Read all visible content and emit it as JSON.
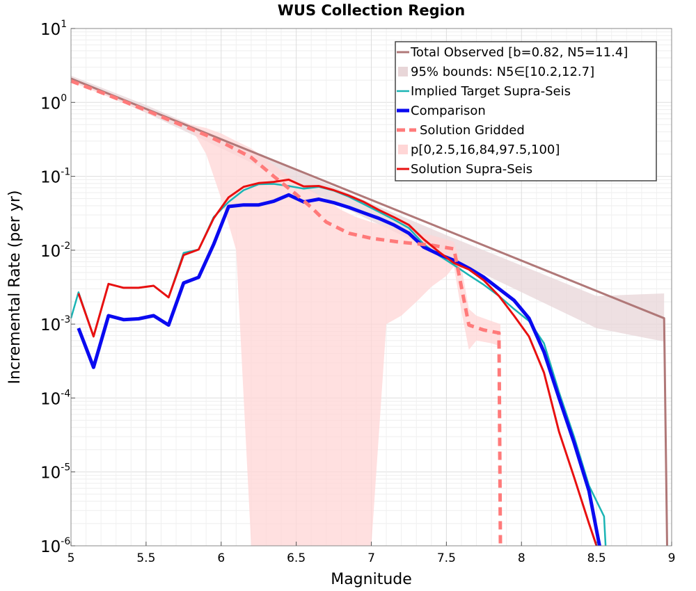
{
  "chart_data": {
    "type": "line",
    "title": "WUS Collection Region",
    "xlabel": "Magnitude",
    "ylabel": "Incremental Rate (per yr)",
    "xlim": [
      5,
      9
    ],
    "ylim": [
      1e-06,
      10
    ],
    "y_scale": "log",
    "grid": true,
    "legend_position": "top-right",
    "x_ticks": [
      "5",
      "5.5",
      "6",
      "6.5",
      "7",
      "7.5",
      "8",
      "8.5",
      "9"
    ],
    "y_ticks": [
      {
        "base": "10",
        "exp": "-6",
        "value": 1e-06
      },
      {
        "base": "10",
        "exp": "-5",
        "value": 1e-05
      },
      {
        "base": "10",
        "exp": "-4",
        "value": 0.0001
      },
      {
        "base": "10",
        "exp": "-3",
        "value": 0.001
      },
      {
        "base": "10",
        "exp": "-2",
        "value": 0.01
      },
      {
        "base": "10",
        "exp": "-1",
        "value": 0.1
      },
      {
        "base": "10",
        "exp": "0",
        "value": 1
      },
      {
        "base": "10",
        "exp": "1",
        "value": 10
      }
    ],
    "series": [
      {
        "name": "Total Observed [b=0.82, N5=11.4]",
        "color": "#b07878",
        "style": "solid",
        "kind": "line",
        "x": [
          5.0,
          8.95,
          8.97
        ],
        "y": [
          2.1,
          0.0012,
          1e-06
        ]
      },
      {
        "name": "95% bounds: N5∈[10.2,12.7]",
        "color": "#e8d6d8",
        "kind": "band",
        "x": [
          5.0,
          5.5,
          6.0,
          6.5,
          7.0,
          7.5,
          8.0,
          8.5,
          8.95
        ],
        "lower": [
          2.0,
          0.72,
          0.24,
          0.078,
          0.025,
          0.0083,
          0.0027,
          0.00088,
          0.00058
        ],
        "upper": [
          2.3,
          0.92,
          0.33,
          0.12,
          0.043,
          0.016,
          0.0062,
          0.0024,
          0.0026
        ]
      },
      {
        "name": "Implied Target Supra-Seis",
        "color": "#1ab4b4",
        "style": "solid",
        "kind": "line",
        "x": [
          5.0,
          5.05,
          5.15,
          5.25,
          5.35,
          5.45,
          5.55,
          5.65,
          5.75,
          5.85,
          5.95,
          6.05,
          6.15,
          6.25,
          6.35,
          6.45,
          6.55,
          6.65,
          6.75,
          6.85,
          6.95,
          7.05,
          7.15,
          7.25,
          7.35,
          7.45,
          7.55,
          7.65,
          7.75,
          7.85,
          7.95,
          8.05,
          8.15,
          8.25,
          8.35,
          8.45,
          8.55,
          8.56
        ],
        "y": [
          0.0012,
          0.0027,
          0.00068,
          0.0035,
          0.0031,
          0.0031,
          0.0033,
          0.0023,
          0.0092,
          0.0102,
          0.028,
          0.045,
          0.065,
          0.078,
          0.079,
          0.074,
          0.068,
          0.072,
          0.064,
          0.053,
          0.042,
          0.033,
          0.026,
          0.02,
          0.012,
          0.0085,
          0.0063,
          0.0046,
          0.0034,
          0.0024,
          0.0016,
          0.0011,
          0.00055,
          0.00012,
          3e-05,
          6.5e-06,
          2.5e-06,
          1e-06
        ]
      },
      {
        "name": "Comparison",
        "color": "#0a0af0",
        "style": "solid",
        "kind": "line",
        "x": [
          5.05,
          5.15,
          5.25,
          5.35,
          5.45,
          5.55,
          5.65,
          5.75,
          5.85,
          5.95,
          6.05,
          6.15,
          6.25,
          6.35,
          6.45,
          6.55,
          6.65,
          6.75,
          6.85,
          6.95,
          7.05,
          7.15,
          7.25,
          7.35,
          7.45,
          7.55,
          7.65,
          7.75,
          7.85,
          7.95,
          8.05,
          8.15,
          8.25,
          8.35,
          8.45,
          8.52
        ],
        "y": [
          0.00088,
          0.00026,
          0.0013,
          0.00115,
          0.00118,
          0.0013,
          0.00097,
          0.0036,
          0.0043,
          0.012,
          0.039,
          0.041,
          0.041,
          0.046,
          0.056,
          0.045,
          0.049,
          0.044,
          0.038,
          0.032,
          0.027,
          0.022,
          0.017,
          0.011,
          0.0088,
          0.0073,
          0.0057,
          0.0043,
          0.003,
          0.0021,
          0.0012,
          0.00042,
          0.0001,
          2.5e-05,
          5.5e-06,
          1e-06
        ]
      },
      {
        "name": "Solution Gridded",
        "color": "#ff7a7a",
        "style": "dashed",
        "kind": "line",
        "x": [
          5.0,
          5.25,
          5.5,
          5.75,
          5.9,
          6.05,
          6.2,
          6.35,
          6.5,
          6.6,
          6.7,
          6.85,
          7.0,
          7.2,
          7.4,
          7.55,
          7.6,
          7.65,
          7.75,
          7.85,
          7.86
        ],
        "y": [
          1.95,
          1.25,
          0.78,
          0.48,
          0.36,
          0.26,
          0.18,
          0.1,
          0.057,
          0.038,
          0.024,
          0.017,
          0.0145,
          0.0128,
          0.0117,
          0.0104,
          0.0032,
          0.00097,
          0.00083,
          0.00076,
          1e-06
        ]
      },
      {
        "name": "p[0,2.5,16,84,97.5,100]",
        "color": "#ffd6d6",
        "kind": "band",
        "x": [
          5.0,
          5.5,
          5.8,
          5.9,
          6.0,
          6.1,
          6.2,
          6.3,
          6.4,
          6.5,
          6.6,
          6.7,
          6.8,
          6.9,
          7.0,
          7.1,
          7.2,
          7.3,
          7.4,
          7.5,
          7.55,
          7.6,
          7.65,
          7.7,
          7.8,
          7.86
        ],
        "lower": [
          1.9,
          0.74,
          0.45,
          0.2,
          0.05,
          0.01,
          1e-06,
          1e-06,
          1e-06,
          1e-06,
          1e-06,
          1e-06,
          1e-06,
          1e-06,
          1e-06,
          0.001,
          0.0013,
          0.002,
          0.0032,
          0.0045,
          0.006,
          0.0015,
          0.00045,
          0.0006,
          0.00055,
          0.0005
        ],
        "upper": [
          2.0,
          0.82,
          0.5,
          0.45,
          0.38,
          0.3,
          0.24,
          0.17,
          0.12,
          0.085,
          0.065,
          0.048,
          0.035,
          0.028,
          0.024,
          0.021,
          0.019,
          0.017,
          0.016,
          0.014,
          0.013,
          0.006,
          0.0016,
          0.0013,
          0.0011,
          0.001
        ]
      },
      {
        "name": "Solution Supra-Seis",
        "color": "#e81010",
        "style": "solid",
        "kind": "line",
        "x": [
          5.05,
          5.15,
          5.25,
          5.35,
          5.45,
          5.55,
          5.65,
          5.75,
          5.85,
          5.95,
          6.05,
          6.15,
          6.25,
          6.35,
          6.45,
          6.55,
          6.65,
          6.75,
          6.85,
          6.95,
          7.05,
          7.15,
          7.25,
          7.35,
          7.45,
          7.55,
          7.65,
          7.75,
          7.85,
          7.95,
          8.05,
          8.15,
          8.25,
          8.35,
          8.45,
          8.5
        ],
        "y": [
          0.0026,
          0.00068,
          0.0035,
          0.0031,
          0.0031,
          0.0033,
          0.0023,
          0.0086,
          0.0102,
          0.027,
          0.052,
          0.072,
          0.081,
          0.084,
          0.09,
          0.073,
          0.074,
          0.065,
          0.055,
          0.045,
          0.035,
          0.028,
          0.022,
          0.014,
          0.0095,
          0.0067,
          0.0055,
          0.0039,
          0.0024,
          0.0013,
          0.00068,
          0.00022,
          3.5e-05,
          8.5e-06,
          2e-06,
          1e-06
        ]
      }
    ]
  }
}
